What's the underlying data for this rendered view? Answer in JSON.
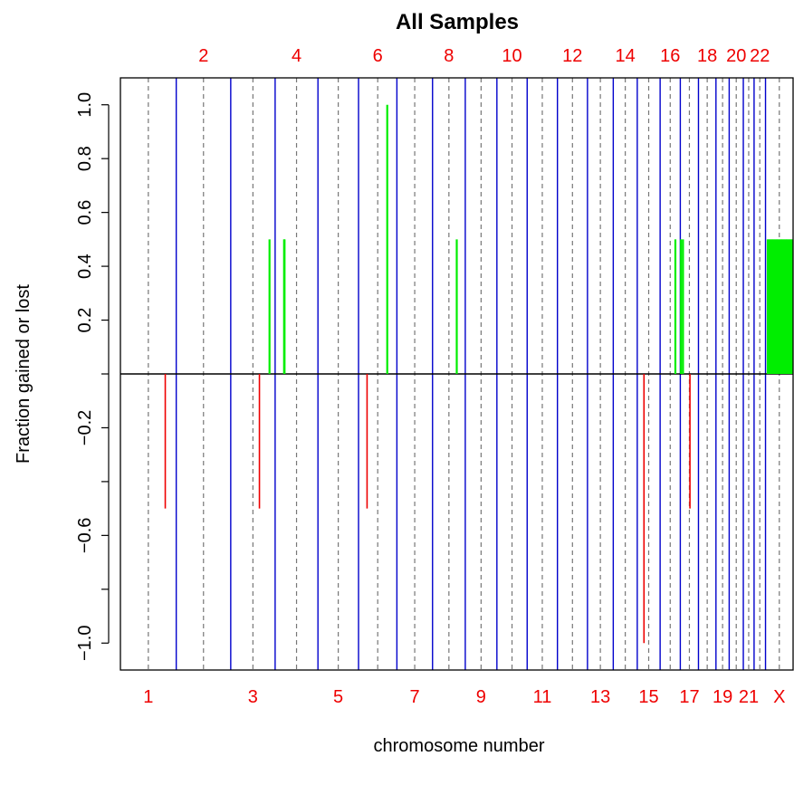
{
  "chart_data": {
    "type": "bar",
    "title": "All Samples",
    "xlabel": "chromosome number",
    "ylabel": "Fraction gained or lost",
    "ylim": [
      -1.1,
      1.1
    ],
    "yticks": [
      {
        "value": 1.0,
        "label": "1.0"
      },
      {
        "value": 0.8,
        "label": "0.8"
      },
      {
        "value": 0.6,
        "label": "0.6"
      },
      {
        "value": 0.4,
        "label": "0.4"
      },
      {
        "value": 0.2,
        "label": "0.2"
      },
      {
        "value": 0.0,
        "label": ""
      },
      {
        "value": -0.2,
        "label": "−0.2"
      },
      {
        "value": -0.4,
        "label": ""
      },
      {
        "value": -0.6,
        "label": "−0.6"
      },
      {
        "value": -0.8,
        "label": ""
      },
      {
        "value": -1.0,
        "label": "−1.0"
      }
    ],
    "chromosomes": [
      {
        "name": "1",
        "start": 0,
        "end": 249
      },
      {
        "name": "2",
        "start": 249,
        "end": 492
      },
      {
        "name": "3",
        "start": 492,
        "end": 690
      },
      {
        "name": "4",
        "start": 690,
        "end": 881
      },
      {
        "name": "5",
        "start": 881,
        "end": 1062
      },
      {
        "name": "6",
        "start": 1062,
        "end": 1233
      },
      {
        "name": "7",
        "start": 1233,
        "end": 1392
      },
      {
        "name": "8",
        "start": 1392,
        "end": 1538
      },
      {
        "name": "9",
        "start": 1538,
        "end": 1679
      },
      {
        "name": "10",
        "start": 1679,
        "end": 1814
      },
      {
        "name": "11",
        "start": 1814,
        "end": 1949
      },
      {
        "name": "12",
        "start": 1949,
        "end": 2083
      },
      {
        "name": "13",
        "start": 2083,
        "end": 2198
      },
      {
        "name": "14",
        "start": 2198,
        "end": 2305
      },
      {
        "name": "15",
        "start": 2305,
        "end": 2407
      },
      {
        "name": "16",
        "start": 2407,
        "end": 2497
      },
      {
        "name": "17",
        "start": 2497,
        "end": 2578
      },
      {
        "name": "18",
        "start": 2578,
        "end": 2656
      },
      {
        "name": "19",
        "start": 2656,
        "end": 2715
      },
      {
        "name": "20",
        "start": 2715,
        "end": 2778
      },
      {
        "name": "21",
        "start": 2778,
        "end": 2826
      },
      {
        "name": "22",
        "start": 2826,
        "end": 2877
      },
      {
        "name": "X",
        "start": 2877,
        "end": 3000
      }
    ],
    "gains": [
      {
        "x": 665,
        "value": 0.5
      },
      {
        "x": 730,
        "value": 0.5
      },
      {
        "x": 732,
        "value": 0.5
      },
      {
        "x": 1190,
        "value": 1.0
      },
      {
        "x": 1500,
        "value": 0.5
      },
      {
        "x": 2475,
        "value": 0.5
      },
      {
        "x": 2500,
        "value": 0.5
      },
      {
        "x": 2509,
        "value": 0.5
      },
      {
        "x": 2887,
        "value": 0.5
      },
      {
        "x": 2892,
        "value": 0.5
      },
      {
        "x": 2897,
        "value": 0.5
      },
      {
        "x": 2902,
        "value": 0.5
      },
      {
        "x": 2907,
        "value": 0.5
      },
      {
        "x": 2912,
        "value": 0.5
      },
      {
        "x": 2917,
        "value": 0.5
      },
      {
        "x": 2922,
        "value": 0.5
      },
      {
        "x": 2927,
        "value": 0.5
      },
      {
        "x": 2932,
        "value": 0.5
      },
      {
        "x": 2937,
        "value": 0.5
      },
      {
        "x": 2942,
        "value": 0.5
      },
      {
        "x": 2947,
        "value": 0.5
      },
      {
        "x": 2952,
        "value": 0.5
      },
      {
        "x": 2957,
        "value": 0.5
      },
      {
        "x": 2962,
        "value": 0.5
      },
      {
        "x": 2967,
        "value": 0.5
      },
      {
        "x": 2972,
        "value": 0.5
      },
      {
        "x": 2977,
        "value": 0.5
      },
      {
        "x": 2982,
        "value": 0.5
      },
      {
        "x": 2987,
        "value": 0.5
      },
      {
        "x": 2992,
        "value": 0.5
      },
      {
        "x": 2997,
        "value": 0.5
      }
    ],
    "losses": [
      {
        "x": 200,
        "value": -0.5
      },
      {
        "x": 620,
        "value": -0.5
      },
      {
        "x": 1100,
        "value": -0.5
      },
      {
        "x": 2335,
        "value": -1.0
      },
      {
        "x": 2540,
        "value": -0.5
      }
    ],
    "colors": {
      "gain": "#00ee00",
      "loss": "#ee0000",
      "boundary": "#0000cc",
      "centromere": "#777777",
      "chrom_label": "#ee0000",
      "zero_line": "#000000"
    }
  }
}
